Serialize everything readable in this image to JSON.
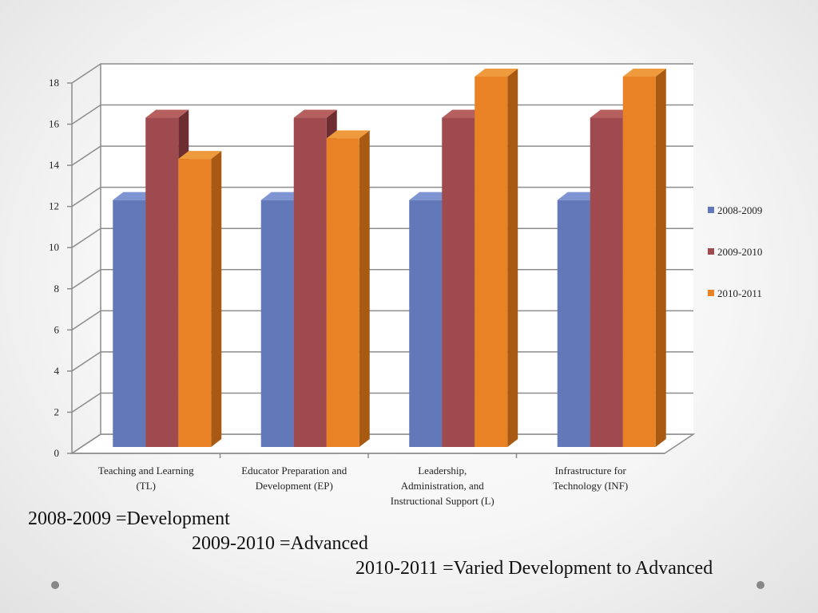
{
  "chart_data": {
    "type": "bar",
    "style": "3d-clustered-column",
    "categories": [
      [
        "Teaching and Learning",
        "(TL)"
      ],
      [
        "Educator Preparation and",
        "Development (EP)"
      ],
      [
        "Leadership,",
        "Administration, and",
        "Instructional Support (L)"
      ],
      [
        "Infrastructure for",
        "Technology (INF)"
      ]
    ],
    "series": [
      {
        "name": "2008-2009",
        "values": [
          12,
          12,
          12,
          12
        ],
        "color": "#6278B8",
        "side": "#3F5189",
        "top": "#7F95D3"
      },
      {
        "name": "2009-2010",
        "values": [
          16,
          16,
          16,
          16
        ],
        "color": "#9E4A4E",
        "side": "#6E2D31",
        "top": "#B5605F"
      },
      {
        "name": "2010-2011",
        "values": [
          14,
          15,
          18,
          18
        ],
        "color": "#E88224",
        "side": "#A85A12",
        "top": "#F09A3E"
      }
    ],
    "yticks": [
      "0",
      "2",
      "4",
      "6",
      "8",
      "10",
      "12",
      "14",
      "16",
      "18"
    ],
    "ylim": [
      0,
      18
    ],
    "grid": true,
    "legend": "right",
    "title": "",
    "xlabel": "",
    "ylabel": ""
  },
  "notes": {
    "line1": "2008-2009 =Development",
    "line2": "2009-2010 =Advanced",
    "line3": "2010-2011 =Varied Development to Advanced"
  }
}
